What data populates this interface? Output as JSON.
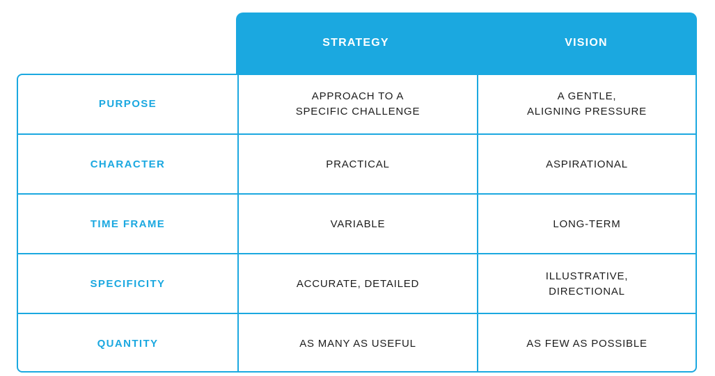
{
  "table": {
    "columns": [
      "",
      "STRATEGY",
      "VISION"
    ],
    "rows": [
      {
        "label": "PURPOSE",
        "strategy": "APPROACH TO A\nSPECIFIC CHALLENGE",
        "vision": "A GENTLE,\nALIGNING PRESSURE"
      },
      {
        "label": "CHARACTER",
        "strategy": "PRACTICAL",
        "vision": "ASPIRATIONAL"
      },
      {
        "label": "TIME FRAME",
        "strategy": "VARIABLE",
        "vision": "LONG-TERM"
      },
      {
        "label": "SPECIFICITY",
        "strategy": "ACCURATE, DETAILED",
        "vision": "ILLUSTRATIVE,\nDIRECTIONAL"
      },
      {
        "label": "QUANTITY",
        "strategy": "AS MANY AS USEFUL",
        "vision": "AS FEW AS POSSIBLE"
      }
    ]
  },
  "colors": {
    "accent": "#1ba8e0",
    "header_text": "#ffffff",
    "body_text": "#1c1c1c"
  }
}
